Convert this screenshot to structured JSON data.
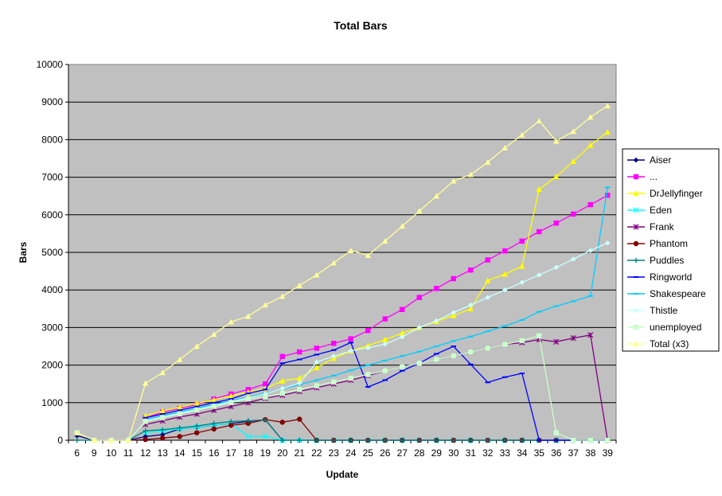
{
  "chart_data": {
    "type": "line",
    "title": "Total Bars",
    "xlabel": "Update",
    "ylabel": "Bars",
    "ylim": [
      0,
      10000
    ],
    "yticks": [
      "0",
      "1000",
      "2000",
      "3000",
      "4000",
      "5000",
      "6000",
      "7000",
      "8000",
      "9000",
      "10000"
    ],
    "grid": true,
    "legend_position": "right",
    "plot_background": "#C0C0C0",
    "categories": [
      "6",
      "9",
      "10",
      "11",
      "12",
      "13",
      "14",
      "15",
      "16",
      "17",
      "18",
      "19",
      "20",
      "21",
      "22",
      "23",
      "24",
      "25",
      "26",
      "27",
      "28",
      "29",
      "30",
      "31",
      "32",
      "33",
      "34",
      "35",
      "36",
      "37",
      "38",
      "39"
    ],
    "series": [
      {
        "name": "Aiser",
        "color": "#000080",
        "marker": "diamond",
        "values": [
          120,
          0,
          0,
          0,
          100,
          150,
          300,
          350,
          400,
          450,
          500,
          550,
          0,
          0,
          0,
          0,
          0,
          0,
          0,
          0,
          0,
          0,
          0,
          0,
          0,
          0,
          0,
          0,
          0,
          0,
          0,
          0
        ]
      },
      {
        "name": "...",
        "color": "#FF00FF",
        "marker": "square",
        "values": [
          null,
          null,
          null,
          null,
          600,
          750,
          850,
          950,
          1100,
          1230,
          1350,
          1500,
          2230,
          2350,
          2450,
          2580,
          2700,
          2920,
          3230,
          3480,
          3800,
          4040,
          4300,
          4530,
          4800,
          5040,
          5300,
          5550,
          5780,
          6020,
          6270,
          6520
        ]
      },
      {
        "name": "DrJellyfinger",
        "color": "#FFFF00",
        "marker": "triangle",
        "values": [
          null,
          null,
          null,
          null,
          650,
          780,
          880,
          980,
          1080,
          1180,
          1280,
          1380,
          1580,
          1650,
          1930,
          2180,
          2380,
          2520,
          2680,
          2850,
          3000,
          3160,
          3320,
          3500,
          4250,
          4420,
          4630,
          6680,
          7020,
          7420,
          7850,
          8200
        ]
      },
      {
        "name": "Eden",
        "color": "#00FFFF",
        "marker": "x",
        "values": [
          null,
          null,
          null,
          null,
          200,
          250,
          300,
          350,
          400,
          450,
          100,
          100,
          0,
          0,
          0,
          0,
          0,
          0,
          0,
          0,
          0,
          0,
          0,
          0,
          0,
          0,
          0,
          0,
          0,
          0,
          0,
          0
        ]
      },
      {
        "name": "Frank",
        "color": "#800080",
        "marker": "star",
        "values": [
          null,
          null,
          null,
          null,
          420,
          520,
          620,
          700,
          800,
          900,
          1000,
          1120,
          1200,
          1300,
          1400,
          1500,
          1600,
          1720,
          1850,
          1950,
          2050,
          2150,
          2250,
          2350,
          2450,
          2550,
          2600,
          2680,
          2620,
          2720,
          2800,
          0
        ]
      },
      {
        "name": "Phantom",
        "color": "#800000",
        "marker": "circle",
        "values": [
          null,
          null,
          null,
          0,
          20,
          60,
          100,
          200,
          300,
          400,
          450,
          550,
          480,
          560,
          0,
          0,
          0,
          0,
          0,
          0,
          0,
          0,
          0,
          0,
          0,
          0,
          0,
          0,
          0,
          0,
          0,
          0
        ]
      },
      {
        "name": "Puddles",
        "color": "#008080",
        "marker": "plus",
        "values": [
          0,
          0,
          0,
          0,
          250,
          280,
          330,
          380,
          450,
          500,
          520,
          540,
          0,
          0,
          0,
          0,
          0,
          0,
          0,
          0,
          0,
          0,
          0,
          0,
          0,
          0,
          0,
          0,
          0,
          0,
          0,
          0
        ]
      },
      {
        "name": "Ringworld",
        "color": "#0000FF",
        "marker": "dash",
        "values": [
          null,
          null,
          null,
          null,
          600,
          700,
          800,
          900,
          1000,
          1100,
          1250,
          1350,
          2050,
          2150,
          2280,
          2400,
          2600,
          1420,
          1600,
          1850,
          2050,
          2300,
          2500,
          2020,
          1540,
          1680,
          1780,
          0,
          0,
          0,
          0,
          0
        ]
      },
      {
        "name": "Shakespeare",
        "color": "#00CCFF",
        "marker": "dash",
        "values": [
          null,
          null,
          null,
          null,
          550,
          650,
          750,
          850,
          950,
          1050,
          1150,
          1250,
          1370,
          1480,
          1600,
          1720,
          1860,
          2000,
          2120,
          2240,
          2360,
          2500,
          2640,
          2760,
          2900,
          3040,
          3200,
          3420,
          3570,
          3700,
          3840,
          6730
        ]
      },
      {
        "name": "Thistle",
        "color": "#CCFFFF",
        "marker": "diamond",
        "values": [
          null,
          null,
          null,
          null,
          520,
          620,
          720,
          820,
          920,
          1030,
          1130,
          1230,
          1380,
          1520,
          2080,
          2240,
          2380,
          2460,
          2560,
          2750,
          3000,
          3180,
          3400,
          3600,
          3800,
          4000,
          4200,
          4400,
          4600,
          4820,
          5050,
          5250
        ]
      },
      {
        "name": "unemployed",
        "color": "#CCFFCC",
        "marker": "square",
        "values": [
          200,
          0,
          0,
          0,
          500,
          600,
          700,
          800,
          900,
          1000,
          1100,
          1150,
          1250,
          1350,
          1450,
          1550,
          1650,
          1750,
          1850,
          1950,
          2050,
          2150,
          2250,
          2350,
          2450,
          2550,
          2650,
          2780,
          200,
          0,
          0,
          0
        ]
      },
      {
        "name": "Total (x3)",
        "color": "#FFFF99",
        "marker": "triangle",
        "values": [
          200,
          0,
          0,
          0,
          1520,
          1800,
          2150,
          2500,
          2820,
          3150,
          3300,
          3600,
          3830,
          4120,
          4400,
          4720,
          5050,
          4920,
          5300,
          5700,
          6100,
          6500,
          6900,
          7070,
          7400,
          7780,
          8130,
          8500,
          7960,
          8220,
          8600,
          8900
        ]
      }
    ]
  }
}
